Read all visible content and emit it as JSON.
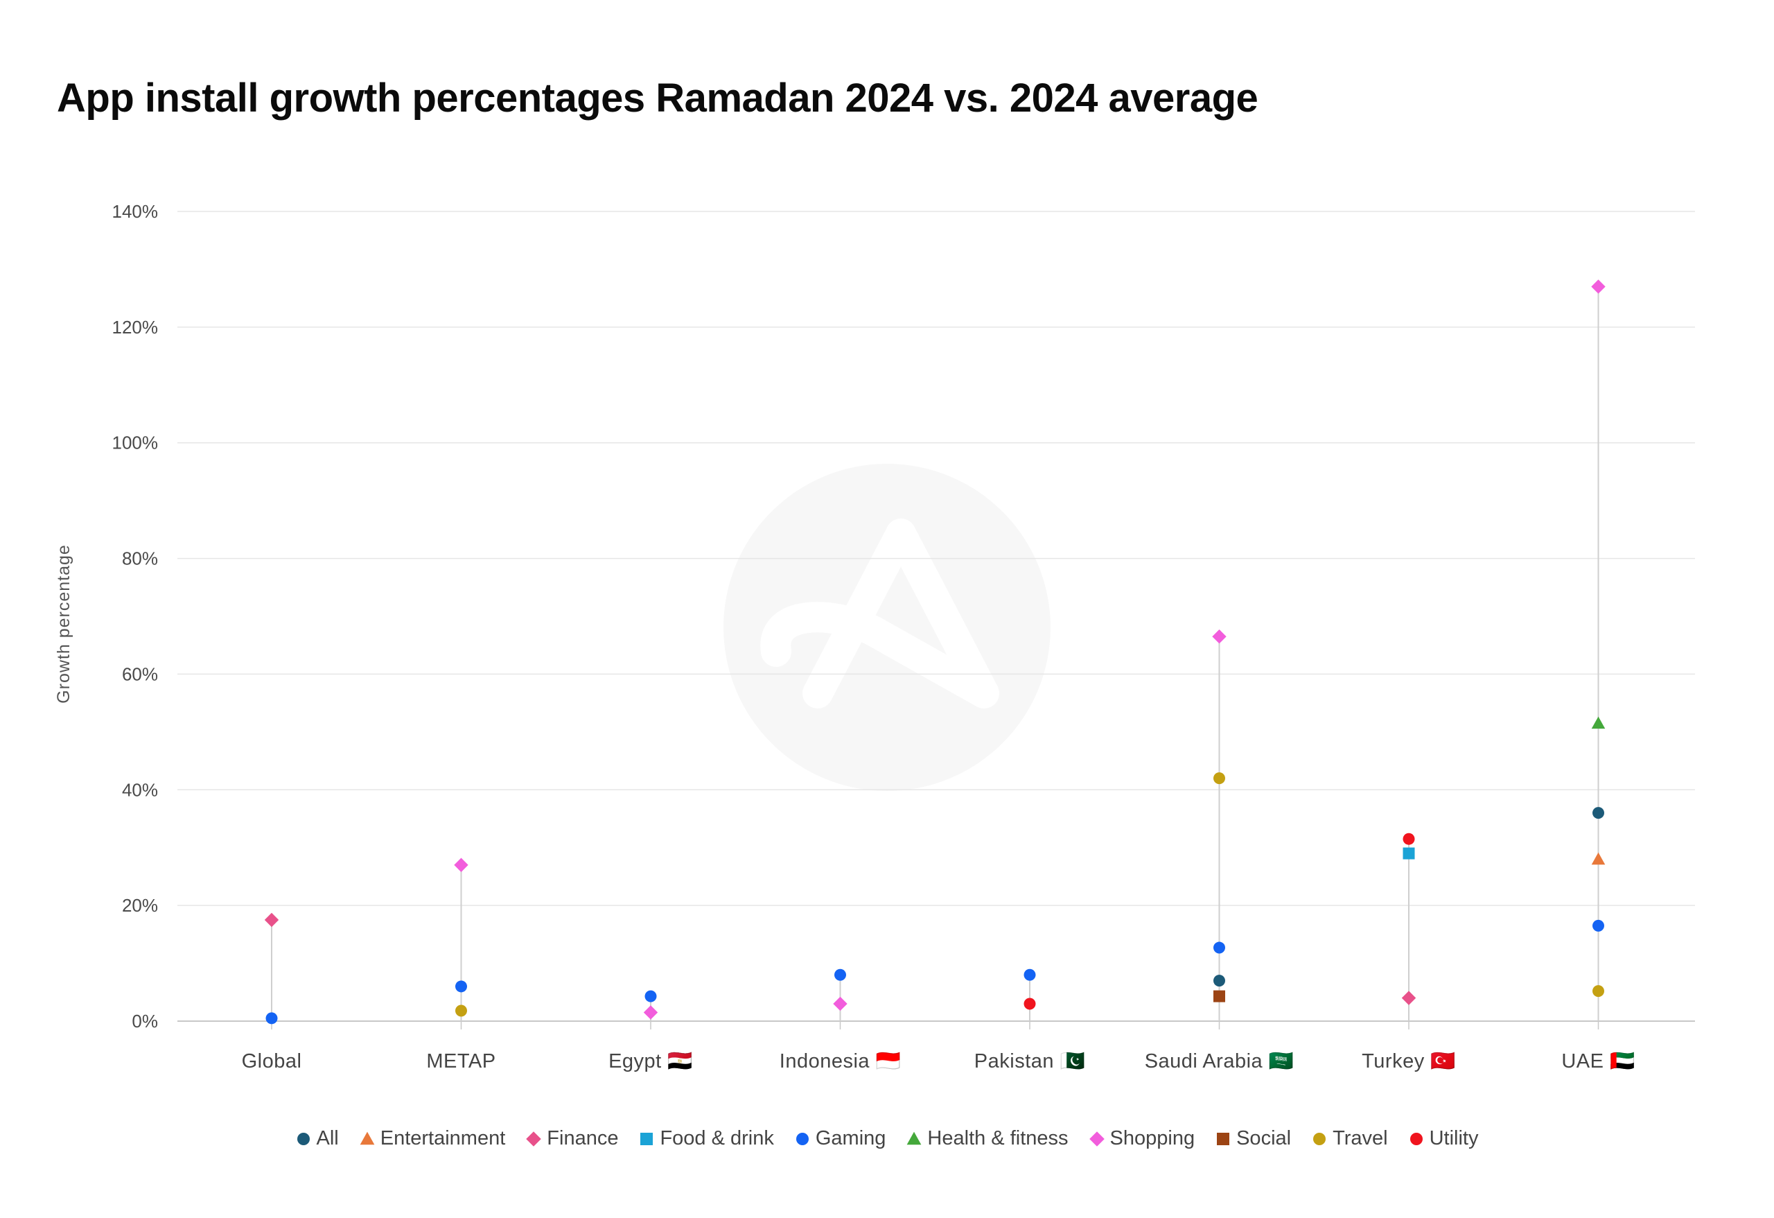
{
  "title": "App install growth percentages Ramadan 2024 vs. 2024 average",
  "chart_data": {
    "type": "scatter",
    "title": "App install growth percentages Ramadan 2024 vs. 2024 average",
    "xlabel": "",
    "ylabel": "Growth percentage",
    "ylim": [
      0,
      140
    ],
    "yticks": [
      0,
      20,
      40,
      60,
      80,
      100,
      120,
      140
    ],
    "ytick_labels": [
      "0%",
      "20%",
      "40%",
      "60%",
      "80%",
      "100%",
      "120%",
      "140%"
    ],
    "grid": true,
    "legend_position": "bottom",
    "categories": [
      "Global",
      "METAP",
      "Egypt",
      "Indonesia",
      "Pakistan",
      "Saudi Arabia",
      "Turkey",
      "UAE"
    ],
    "category_flags": [
      "",
      "",
      "🇪🇬",
      "🇮🇩",
      "🇵🇰",
      "🇸🇦",
      "🇹🇷",
      "🇦🇪"
    ],
    "series": [
      {
        "name": "All",
        "color": "#1c5a78",
        "marker": "circle",
        "values": [
          null,
          null,
          null,
          null,
          null,
          7,
          null,
          36
        ]
      },
      {
        "name": "Entertainment",
        "color": "#e8783a",
        "marker": "triangle",
        "values": [
          null,
          null,
          null,
          null,
          null,
          null,
          null,
          28
        ]
      },
      {
        "name": "Finance",
        "color": "#e8518a",
        "marker": "diamond",
        "values": [
          17.5,
          null,
          null,
          null,
          null,
          null,
          4,
          null
        ]
      },
      {
        "name": "Food & drink",
        "color": "#1ba3d6",
        "marker": "square",
        "values": [
          null,
          null,
          null,
          null,
          null,
          null,
          29,
          null
        ]
      },
      {
        "name": "Gaming",
        "color": "#1463f3",
        "marker": "circle",
        "values": [
          0.5,
          6,
          4.3,
          8,
          8,
          12.7,
          null,
          16.5
        ]
      },
      {
        "name": "Health & fitness",
        "color": "#44a83b",
        "marker": "triangle",
        "values": [
          null,
          null,
          null,
          null,
          null,
          null,
          null,
          51.5
        ]
      },
      {
        "name": "Shopping",
        "color": "#f25ddc",
        "marker": "diamond",
        "values": [
          null,
          27,
          1.5,
          3,
          null,
          66.5,
          null,
          127
        ]
      },
      {
        "name": "Social",
        "color": "#9c4414",
        "marker": "square",
        "values": [
          null,
          null,
          null,
          null,
          null,
          4.3,
          null,
          null
        ]
      },
      {
        "name": "Travel",
        "color": "#c4a012",
        "marker": "circle",
        "values": [
          null,
          1.8,
          null,
          null,
          null,
          42,
          null,
          5.2
        ]
      },
      {
        "name": "Utility",
        "color": "#f0141e",
        "marker": "circle",
        "values": [
          null,
          null,
          null,
          null,
          3,
          null,
          31.5,
          null
        ]
      }
    ]
  }
}
